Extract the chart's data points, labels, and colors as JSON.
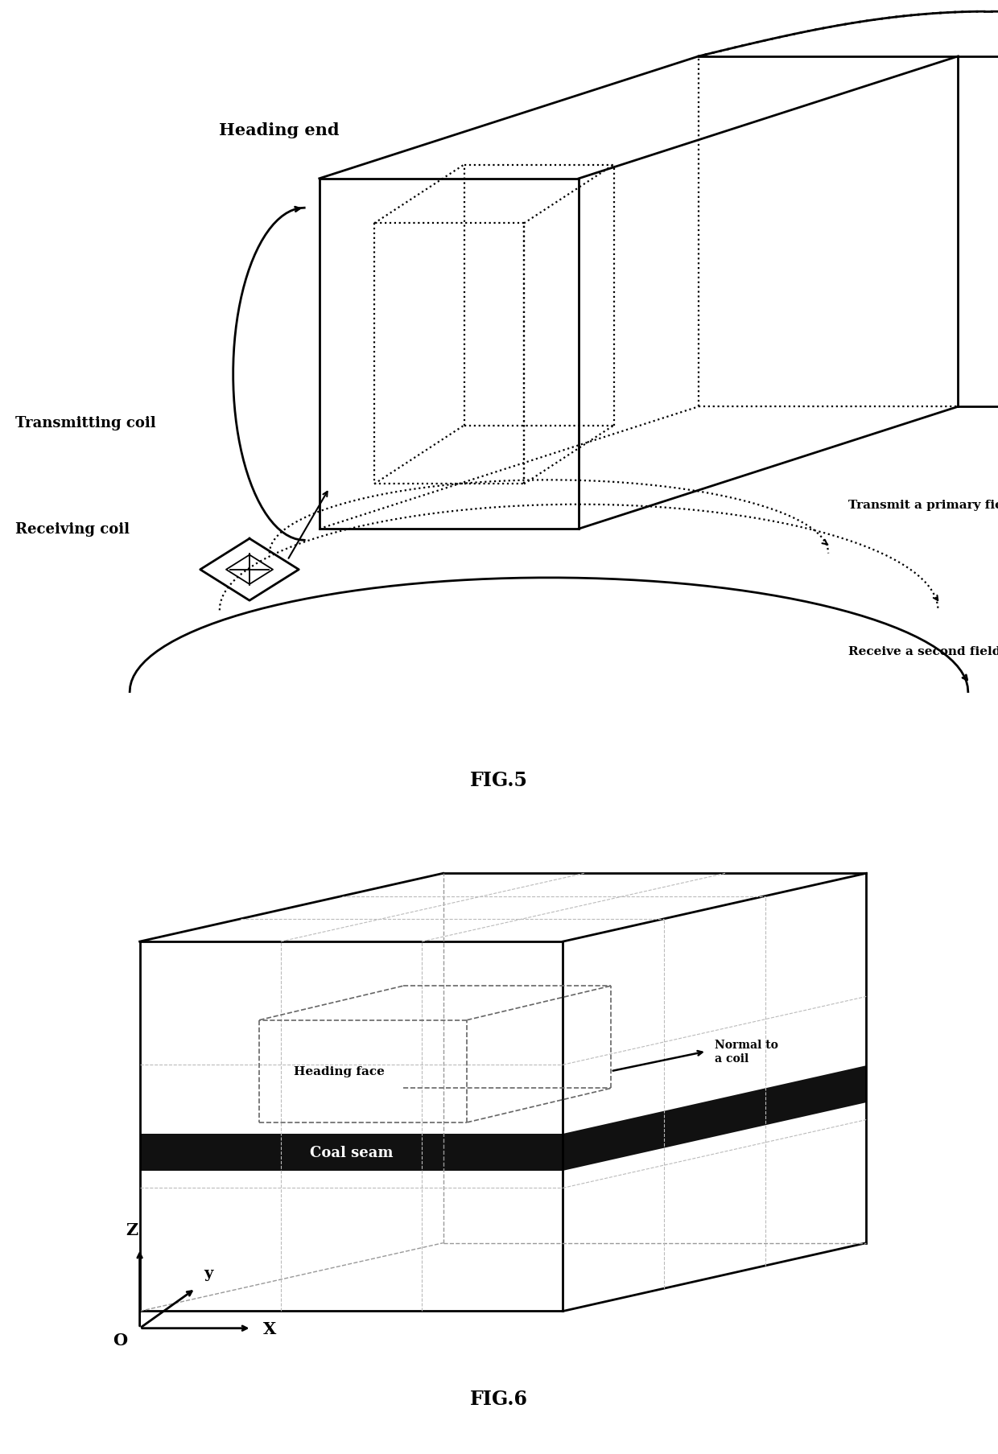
{
  "fig_title1": "FIG.5",
  "fig_title2": "FIG.6",
  "bg_color": "#ffffff",
  "labels": {
    "heading_end": "Heading end",
    "transmitting_coil": "Transmitting coil",
    "receiving_coil": "Receiving coil",
    "transmit_primary": "Transmit a primary field",
    "receive_second": "Receive a second field",
    "heading_face": "Heading face",
    "normal_coil": "Normal to\na coil",
    "coal_seam": "Coal seam",
    "z_axis": "Z",
    "y_axis": "y",
    "x_axis": "X",
    "origin": "O"
  }
}
